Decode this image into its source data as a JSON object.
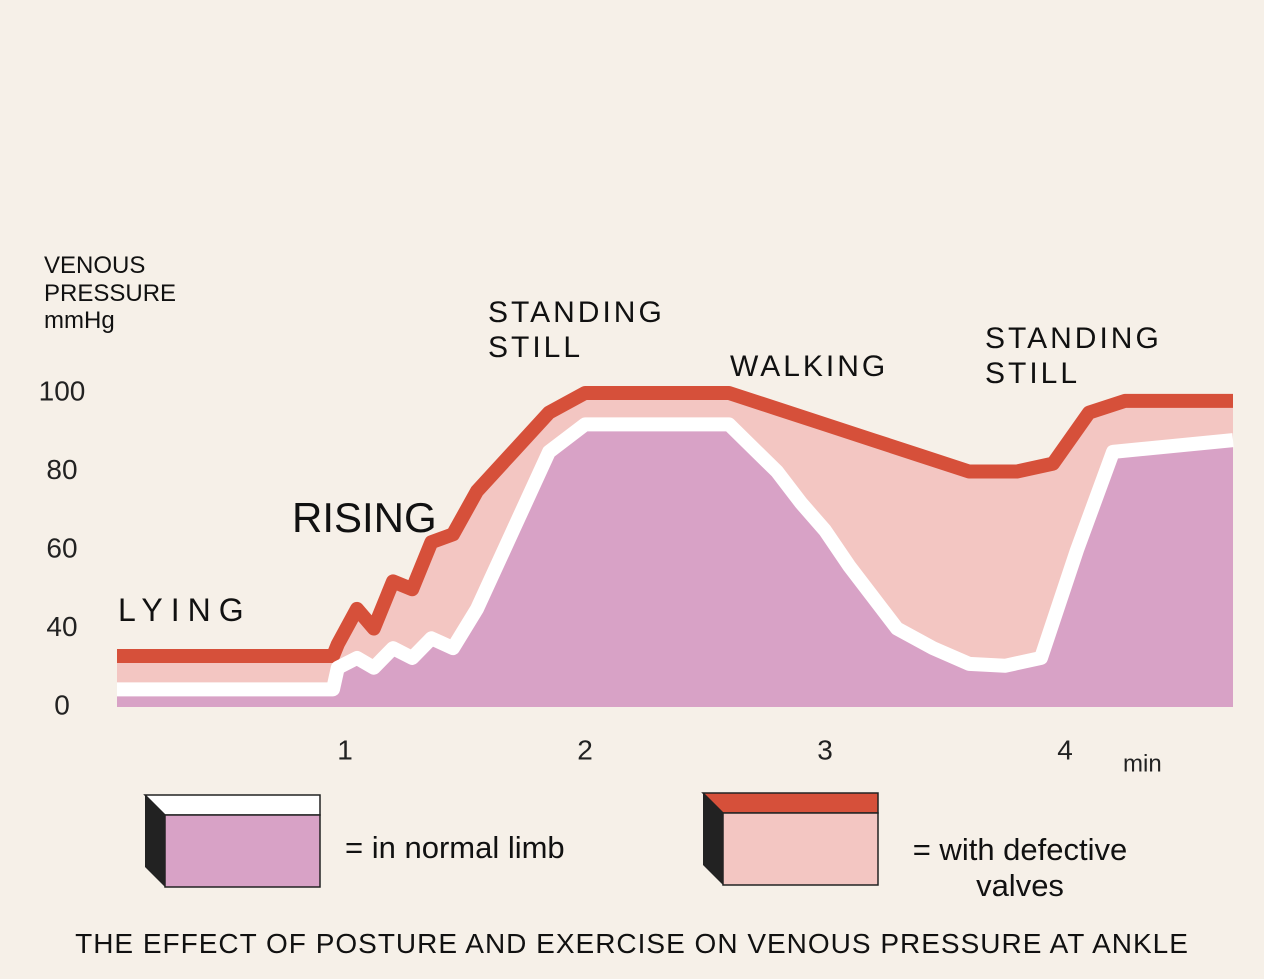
{
  "chart_data": {
    "type": "area",
    "title": "THE EFFECT OF POSTURE AND EXERCISE ON VENOUS PRESSURE AT ANKLE",
    "ylabel": [
      "VENOUS",
      "PRESSURE",
      "mmHg"
    ],
    "xlabel": "min",
    "annotations": [
      "LYING",
      "RISING",
      "STANDING STILL",
      "WALKING",
      "STANDING STILL"
    ],
    "xlim": [
      0,
      4.7
    ],
    "xticks": [
      1,
      2,
      3,
      4
    ],
    "ylim": [
      0,
      100
    ],
    "yticks": [
      0,
      40,
      60,
      80,
      100
    ],
    "series": [
      {
        "name": "= with defective valves",
        "color": "#f3c6c2",
        "edge_color": "#d6503a",
        "x": [
          0.05,
          0.95,
          0.97,
          1.05,
          1.12,
          1.2,
          1.28,
          1.36,
          1.45,
          1.55,
          1.7,
          1.85,
          2.0,
          2.6,
          2.8,
          3.0,
          3.2,
          3.4,
          3.6,
          3.8,
          3.95,
          4.1,
          4.25,
          4.7
        ],
        "values": [
          26,
          26,
          32,
          45,
          40,
          52,
          50,
          62,
          64,
          75,
          85,
          95,
          100,
          100,
          96,
          92,
          88,
          84,
          80,
          80,
          82,
          95,
          98,
          98
        ]
      },
      {
        "name": "= in normal limb",
        "color": "#d8a2c6",
        "edge_color": "#ffffff",
        "x": [
          0.05,
          0.95,
          0.97,
          1.05,
          1.12,
          1.2,
          1.28,
          1.36,
          1.45,
          1.55,
          1.7,
          1.85,
          2.0,
          2.6,
          2.7,
          2.8,
          2.9,
          3.0,
          3.1,
          3.2,
          3.3,
          3.45,
          3.6,
          3.75,
          3.9,
          4.05,
          4.2,
          4.7
        ],
        "values": [
          9,
          9,
          20,
          25,
          20,
          30,
          25,
          35,
          30,
          45,
          65,
          85,
          92,
          92,
          86,
          80,
          72,
          65,
          56,
          48,
          40,
          30,
          22,
          21,
          25,
          60,
          85,
          88
        ]
      }
    ]
  }
}
